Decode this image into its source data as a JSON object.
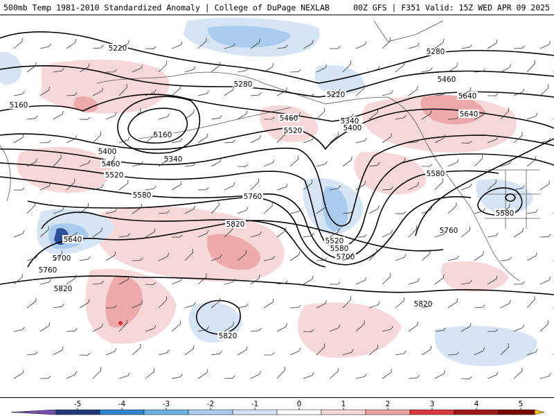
{
  "header": {
    "left": "500mb Temp 1981-2010 Standardized Anomaly | College of DuPage NEXLAB",
    "right": "00Z GFS | F351 Valid: 15Z WED APR 09 2025"
  },
  "contour_labels": [
    {
      "id": "c5220a",
      "text": "5220"
    },
    {
      "id": "c5160a",
      "text": "5160"
    },
    {
      "id": "c5160b",
      "text": "5160"
    },
    {
      "id": "c5280a",
      "text": "5280"
    },
    {
      "id": "c5220b",
      "text": "5220"
    },
    {
      "id": "c5340a",
      "text": "5340"
    },
    {
      "id": "c5340b",
      "text": "5340"
    },
    {
      "id": "c5400a",
      "text": "5400"
    },
    {
      "id": "c5400b",
      "text": "5400"
    },
    {
      "id": "c5460a",
      "text": "5460"
    },
    {
      "id": "c5460b",
      "text": "5460"
    },
    {
      "id": "c5520a",
      "text": "5520"
    },
    {
      "id": "c5520b",
      "text": "5520"
    },
    {
      "id": "c5520c",
      "text": "5520"
    },
    {
      "id": "c5580a",
      "text": "5580"
    },
    {
      "id": "c5580b",
      "text": "5580"
    },
    {
      "id": "c5580c",
      "text": "5580"
    },
    {
      "id": "c5580d",
      "text": "5580"
    },
    {
      "id": "c5640a",
      "text": "5640"
    },
    {
      "id": "c5640b",
      "text": "5640"
    },
    {
      "id": "c5700a",
      "text": "5700"
    },
    {
      "id": "c5700b",
      "text": "5700"
    },
    {
      "id": "c5760a",
      "text": "5760"
    },
    {
      "id": "c5760b",
      "text": "5760"
    },
    {
      "id": "c5760c",
      "text": "5760"
    },
    {
      "id": "c5820a",
      "text": "5820"
    },
    {
      "id": "c5820b",
      "text": "5820"
    },
    {
      "id": "c5820c",
      "text": "5820"
    },
    {
      "id": "c5820d",
      "text": "5820"
    },
    {
      "id": "c5280b",
      "text": "5280"
    },
    {
      "id": "c5460c",
      "text": "5460"
    },
    {
      "id": "c5640c",
      "text": "5640"
    }
  ],
  "colorbar": {
    "ticks": [
      "-5",
      "-4",
      "-3",
      "-2",
      "-1",
      "0",
      "1",
      "2",
      "3",
      "4",
      "5"
    ],
    "colors": {
      "below": "#7b4fb0",
      "-5": "#1f3a7a",
      "-4": "#2f86cf",
      "-3": "#6fb0e2",
      "-2": "#a9cdee",
      "-1": "#d6e5f5",
      "0": "#ffffff",
      "1": "#f7d6d6",
      "2": "#eea3a3",
      "3": "#d9393a",
      "4": "#a01818",
      "5": "#7a0000",
      "above": "#f5c400"
    }
  },
  "colors": {
    "warm_light": "#f6d2d2",
    "warm_mid": "#eeaaaa",
    "warm_hot": "#d23232",
    "cool_light": "#d4e4f4",
    "cool_mid": "#a6c9ec",
    "cool_dark": "#2e4f9a"
  }
}
